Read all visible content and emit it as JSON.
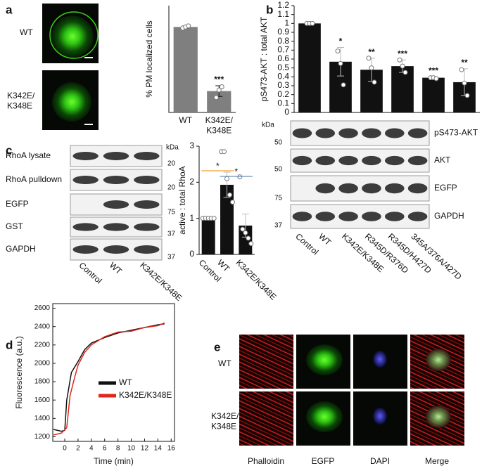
{
  "panel_labels": [
    "a",
    "b",
    "c",
    "d",
    "e"
  ],
  "panel_a": {
    "image_labels": [
      "WT",
      "K342E/\nK348E"
    ]
  },
  "panel_b": {
    "kda_label": "kDa",
    "rows": [
      {
        "label": "pS473-AKT",
        "marker": "50"
      },
      {
        "label": "AKT",
        "marker": "50"
      },
      {
        "label": "EGFP",
        "marker": "75"
      },
      {
        "label": "GAPDH",
        "marker": "37"
      }
    ],
    "lanes": [
      "Control",
      "WT",
      "K342E/K348E",
      "R345D/R376D",
      "R345D/H427D",
      "345A/376A/427D"
    ]
  },
  "panel_c": {
    "kda_label": "kDa",
    "rows": [
      {
        "label": "RhoA lysate",
        "marker": "20"
      },
      {
        "label": "RhoA pulldown",
        "marker": "20"
      },
      {
        "label": "EGFP",
        "marker": "75"
      },
      {
        "label": "GST",
        "marker": "37"
      },
      {
        "label": "GAPDH",
        "marker": "37"
      }
    ],
    "lanes": [
      "Control",
      "WT",
      "K342E/K348E"
    ]
  },
  "panel_e": {
    "row_labels": [
      "WT",
      "K342E/\nK348E"
    ],
    "column_labels": [
      "Phalloidin",
      "EGFP",
      "DAPI",
      "Merge"
    ]
  },
  "chart_data": [
    {
      "type": "bar",
      "y_label": "% PM localized cells",
      "categories": [
        "WT",
        "K342E/\nK348E"
      ],
      "color": "#7f7f7f",
      "values": [
        80,
        20
      ],
      "errors": [
        1,
        5
      ],
      "points": [
        [
          79,
          80,
          81
        ],
        [
          14,
          21,
          24
        ]
      ],
      "annotations": [
        null,
        "***"
      ],
      "ylim": [
        0,
        100
      ]
    },
    {
      "type": "bar",
      "y_label": "pS473-AKT : total AKT",
      "categories": [
        "Control",
        "WT",
        "K342E/K348E",
        "R345D/R376D",
        "R345D/H427D",
        "345A/376A/427D"
      ],
      "color": "#111111",
      "values": [
        1,
        0.57,
        0.48,
        0.52,
        0.39,
        0.34
      ],
      "errors": [
        0.005,
        0.16,
        0.13,
        0.07,
        0.01,
        0.15
      ],
      "points": [
        [
          1,
          1,
          1
        ],
        [
          0.69,
          0.55,
          0.31
        ],
        [
          0.61,
          0.5,
          0.34
        ],
        [
          0.59,
          0.52,
          0.45
        ],
        [
          0.39,
          0.39,
          0.38
        ],
        [
          0.48,
          0.33,
          0.19
        ]
      ],
      "annotations": [
        null,
        "*",
        "**",
        "***",
        "***",
        "**"
      ],
      "ylim": [
        0,
        1.2
      ],
      "yticks": [
        0,
        0.1,
        0.2,
        0.3,
        0.4,
        0.5,
        0.6,
        0.7,
        0.8,
        0.9,
        1,
        1.1,
        1.2
      ]
    },
    {
      "type": "bar",
      "y_label": "active : total RhoA",
      "categories": [
        "Control",
        "WT",
        "K342E/K348E"
      ],
      "color": "#111111",
      "values": [
        1,
        1.93,
        0.8
      ],
      "errors": [
        0.02,
        0.35,
        0.32
      ],
      "points": [
        [
          1,
          1,
          1,
          1,
          1
        ],
        [
          2.85,
          2.85,
          2.1,
          1.65,
          1.45
        ],
        [
          2.15,
          0.7,
          0.6,
          0.45,
          0.3
        ]
      ],
      "significance": [
        {
          "label": "*",
          "color": "#f0a030"
        },
        {
          "label": "*",
          "color": "#6a8fb5"
        }
      ],
      "ylim": [
        0,
        3
      ],
      "yticks": [
        0,
        1,
        2,
        3
      ]
    },
    {
      "type": "line",
      "x_label": "Time (min)",
      "y_label": "Fluorescence (a.u.)",
      "series": [
        {
          "name": "WT",
          "color": "#111111",
          "x": [
            -1.7,
            -0.5,
            0,
            0.3,
            1,
            2,
            3,
            4,
            6,
            8,
            10,
            12,
            14,
            15
          ],
          "values": [
            1280,
            1260,
            1270,
            1600,
            1900,
            2020,
            2150,
            2220,
            2280,
            2330,
            2360,
            2390,
            2420,
            2430
          ]
        },
        {
          "name": "K342E/K348E",
          "color": "#e0261e",
          "x": [
            -1.7,
            -0.5,
            0.3,
            0.8,
            1.5,
            2,
            3,
            4,
            6,
            8,
            10,
            12,
            14,
            15
          ],
          "values": [
            1220,
            1240,
            1300,
            1650,
            1850,
            1980,
            2120,
            2200,
            2290,
            2340,
            2350,
            2390,
            2410,
            2440
          ]
        }
      ],
      "xlim": [
        -1.8,
        16.5
      ],
      "xticks": [
        0,
        2,
        4,
        6,
        8,
        10,
        12,
        14,
        16
      ],
      "ylim": [
        1150,
        2650
      ],
      "yticks": [
        1200,
        1400,
        1600,
        1800,
        2000,
        2200,
        2400,
        2600
      ]
    }
  ]
}
